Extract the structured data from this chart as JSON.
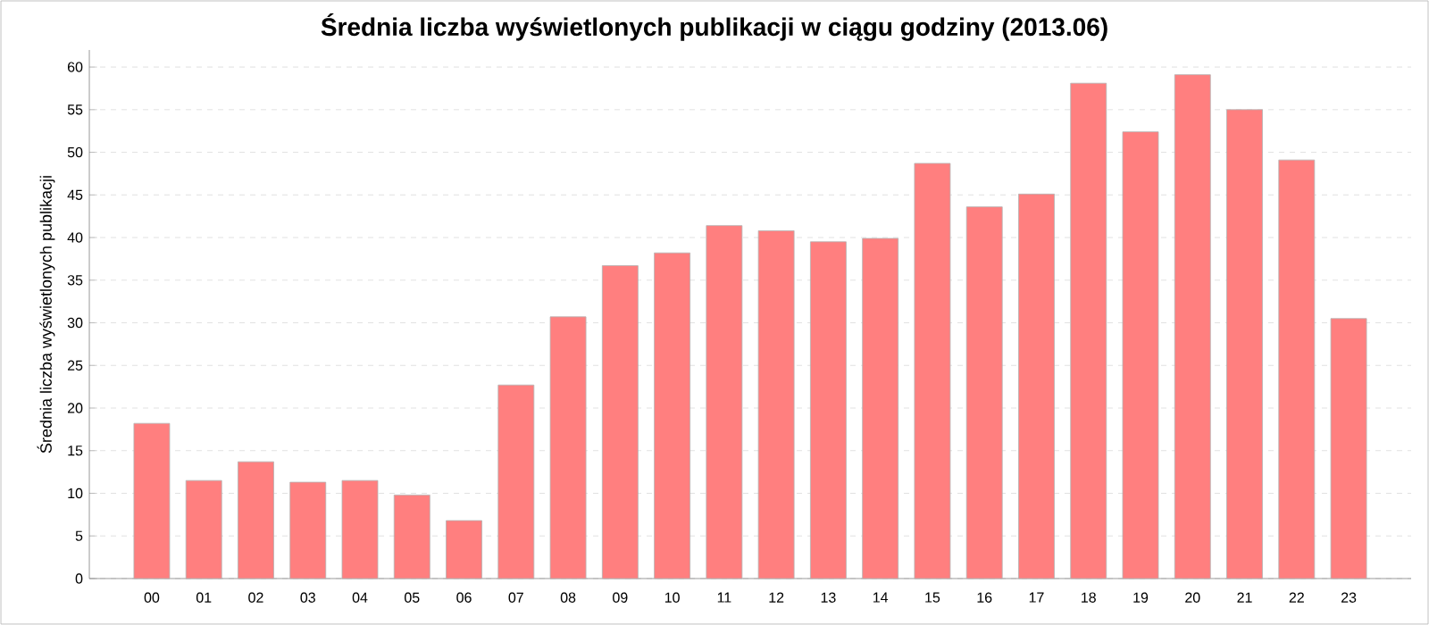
{
  "chart_data": {
    "type": "bar",
    "title": "Średnia liczba wyświetlonych publikacji w ciągu godziny (2013.06)",
    "ylabel": "Średnia liczba wyświetlonych publikacji",
    "categories": [
      "00",
      "01",
      "02",
      "03",
      "04",
      "05",
      "06",
      "07",
      "08",
      "09",
      "10",
      "11",
      "12",
      "13",
      "14",
      "15",
      "16",
      "17",
      "18",
      "19",
      "20",
      "21",
      "22",
      "23"
    ],
    "values": [
      18.2,
      11.5,
      13.7,
      11.3,
      11.5,
      9.8,
      6.8,
      22.7,
      30.7,
      36.7,
      38.2,
      41.4,
      40.8,
      39.5,
      39.9,
      48.7,
      43.6,
      45.1,
      58.1,
      52.4,
      59.1,
      55.0,
      49.1,
      30.5
    ],
    "color": "#ff7f7f",
    "ylim": [
      0,
      62
    ],
    "yticks": [
      0,
      5,
      10,
      15,
      20,
      25,
      30,
      35,
      40,
      45,
      50,
      55,
      60
    ],
    "grid": "y"
  }
}
